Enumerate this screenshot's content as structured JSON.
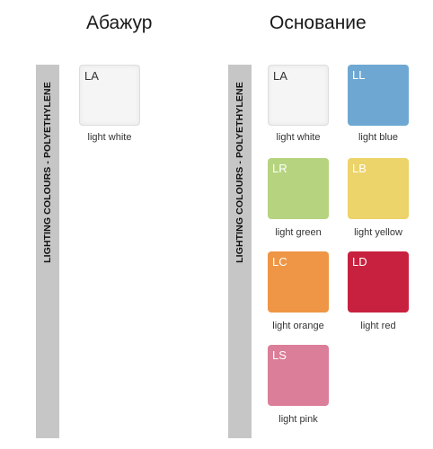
{
  "headers": {
    "shade": "Абажур",
    "base": "Основание"
  },
  "bars": {
    "left_label": "LIGHTING COLOURS - POLYETHYLENE",
    "right_label": "LIGHTING COLOURS - POLYETHYLENE"
  },
  "shade_swatches": [
    {
      "code": "LA",
      "name": "light white",
      "color": "#f5f5f5",
      "code_color": "#333333"
    }
  ],
  "base_swatches": [
    {
      "code": "LA",
      "name": "light white",
      "color": "#f5f5f5",
      "code_color": "#333333"
    },
    {
      "code": "LL",
      "name": "light blue",
      "color": "#6ea8d2",
      "code_color": "#ffffff"
    },
    {
      "code": "LR",
      "name": "light green",
      "color": "#b6d47f",
      "code_color": "#ffffff"
    },
    {
      "code": "LB",
      "name": "light yellow",
      "color": "#ecd36a",
      "code_color": "#ffffff"
    },
    {
      "code": "LC",
      "name": "light orange",
      "color": "#ee9645",
      "code_color": "#ffffff"
    },
    {
      "code": "LD",
      "name": "light red",
      "color": "#c8213f",
      "code_color": "#ffffff"
    },
    {
      "code": "LS",
      "name": "light pink",
      "color": "#db7e99",
      "code_color": "#ffffff"
    }
  ]
}
